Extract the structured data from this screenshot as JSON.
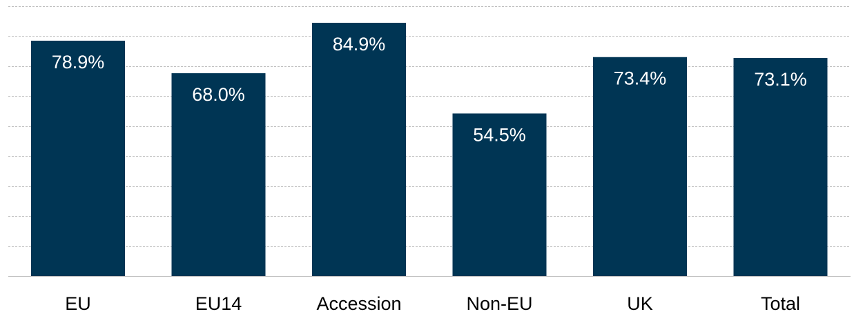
{
  "chart_data": {
    "type": "bar",
    "categories": [
      "EU",
      "EU14",
      "Accession",
      "Non-EU",
      "UK",
      "Total"
    ],
    "values": [
      78.9,
      68.0,
      84.9,
      54.5,
      73.4,
      73.1
    ],
    "value_labels": [
      "78.9%",
      "68.0%",
      "84.9%",
      "54.5%",
      "73.4%",
      "73.1%"
    ],
    "title": "",
    "xlabel": "",
    "ylabel": "",
    "ylim": [
      0,
      90
    ],
    "grid": true,
    "legend": "none",
    "colors": {
      "bar": "#003554",
      "grid": "#bfbfbf",
      "bar_label": "#ffffff",
      "category_label": "#000000"
    }
  }
}
